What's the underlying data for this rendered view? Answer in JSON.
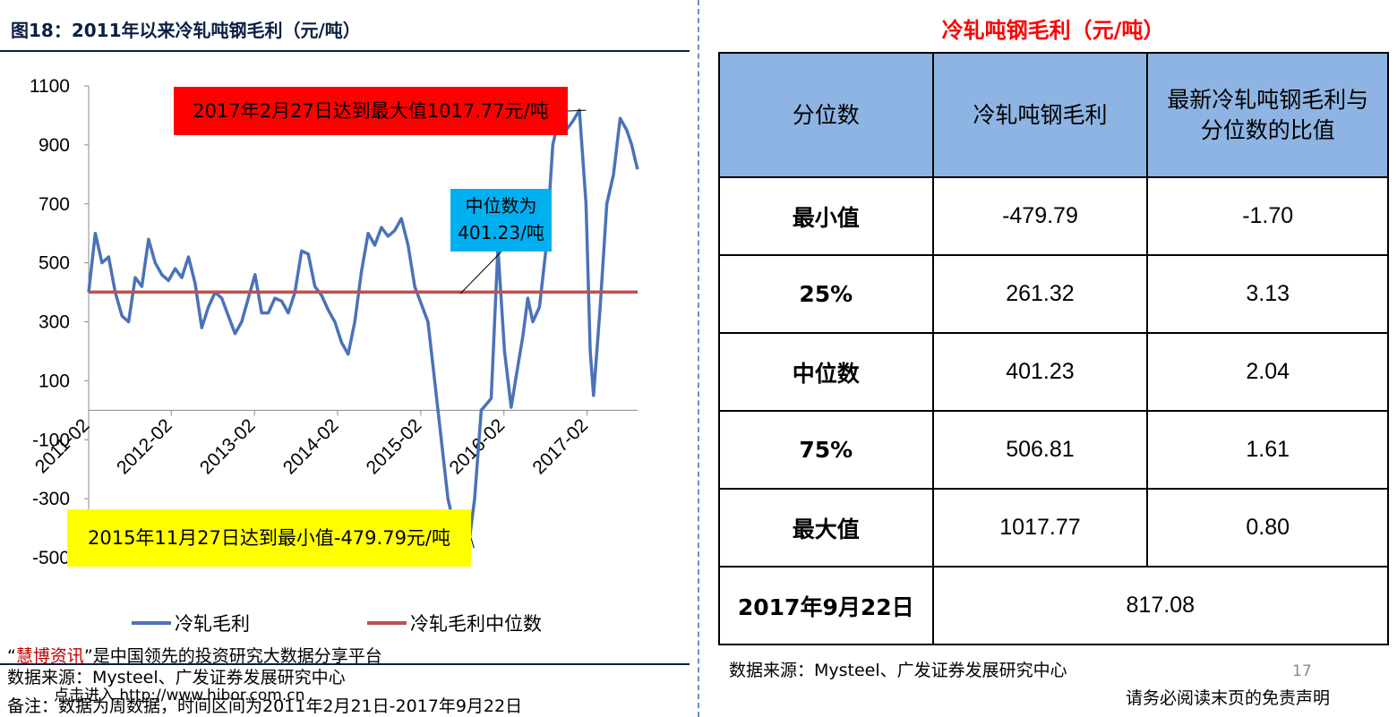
{
  "figure_title": "图18：2011年以来冷轧吨钢毛利（元/吨）",
  "right_title": "冷轧吨钢毛利（元/吨）",
  "callouts": {
    "max": "2017年2月27日达到最大值1017.77元/吨",
    "min": "2015年11月27日达到最小值-479.79元/吨",
    "median": "中位数为401.23/吨"
  },
  "legend": {
    "series1": "冷轧毛利",
    "series2": "冷轧毛利中位数"
  },
  "colors": {
    "series1": "#4a72b8",
    "series2": "#c0504d",
    "header": "#8eb4e3",
    "accent_red": "#ff0000"
  },
  "notes": {
    "promo_prefix": "“",
    "promo_brand": "慧博资讯",
    "promo_rest": "”是中国领先的投资研究大数据分享平台",
    "source": "数据来源：Mysteel、广发证券发展研究中心",
    "watermark": "点击进入 http://www.hibor.com.cn",
    "remark": "备注：数据为周数据，时间区间为2011年2月21日-2017年9月22日"
  },
  "table": {
    "headers": [
      "分位数",
      "冷轧吨钢毛利",
      "最新冷轧吨钢毛利与分位数的比值"
    ],
    "rows": [
      [
        "最小值",
        "-479.79",
        "-1.70"
      ],
      [
        "25%",
        "261.32",
        "3.13"
      ],
      [
        "中位数",
        "401.23",
        "2.04"
      ],
      [
        "75%",
        "506.81",
        "1.61"
      ],
      [
        "最大值",
        "1017.77",
        "0.80"
      ]
    ],
    "last_row": {
      "label": "2017年9月22日",
      "value": "817.08"
    }
  },
  "right_source": "数据来源：Mysteel、广发证券发展研究中心",
  "page_number": "17",
  "disclaimer": "请务必阅读末页的免责声明",
  "chart_data": {
    "type": "line",
    "xlabel": "",
    "ylabel": "",
    "ylim": [
      -500,
      1100
    ],
    "yticks": [
      -500,
      -300,
      -100,
      100,
      300,
      500,
      700,
      900,
      1100
    ],
    "xlim": [
      "2011-02",
      "2017-09"
    ],
    "xtick_labels": [
      "2011-02",
      "2012-02",
      "2013-02",
      "2014-02",
      "2015-02",
      "2016-02",
      "2017-02"
    ],
    "grid": false,
    "legend_position": "bottom",
    "series": [
      {
        "name": "冷轧毛利",
        "x": [
          2011.13,
          2011.21,
          2011.29,
          2011.37,
          2011.45,
          2011.53,
          2011.61,
          2011.69,
          2011.77,
          2011.85,
          2011.93,
          2012.01,
          2012.09,
          2012.17,
          2012.25,
          2012.33,
          2012.41,
          2012.49,
          2012.57,
          2012.65,
          2012.73,
          2012.81,
          2012.89,
          2012.97,
          2013.05,
          2013.13,
          2013.21,
          2013.29,
          2013.37,
          2013.45,
          2013.53,
          2013.61,
          2013.69,
          2013.77,
          2013.85,
          2013.93,
          2014.01,
          2014.09,
          2014.17,
          2014.25,
          2014.33,
          2014.41,
          2014.49,
          2014.57,
          2014.65,
          2014.73,
          2014.81,
          2014.89,
          2014.97,
          2015.05,
          2015.13,
          2015.21,
          2015.29,
          2015.37,
          2015.45,
          2015.53,
          2015.61,
          2015.69,
          2015.77,
          2015.85,
          2015.91,
          2015.97,
          2016.05,
          2016.13,
          2016.21,
          2016.29,
          2016.35,
          2016.41,
          2016.47,
          2016.55,
          2016.63,
          2016.71,
          2016.79,
          2016.87,
          2016.95,
          2017.03,
          2017.11,
          2017.16,
          2017.2,
          2017.28,
          2017.36,
          2017.44,
          2017.52,
          2017.6,
          2017.66,
          2017.7,
          2017.73
        ],
        "values": [
          400,
          600,
          500,
          520,
          400,
          320,
          300,
          450,
          420,
          580,
          500,
          460,
          440,
          480,
          450,
          520,
          430,
          280,
          350,
          400,
          380,
          320,
          260,
          300,
          380,
          460,
          330,
          330,
          380,
          370,
          330,
          400,
          540,
          530,
          420,
          390,
          340,
          300,
          230,
          190,
          300,
          470,
          600,
          560,
          620,
          590,
          610,
          650,
          560,
          420,
          360,
          300,
          100,
          -100,
          -300,
          -400,
          -420,
          -480,
          -300,
          0,
          20,
          40,
          550,
          200,
          10,
          150,
          250,
          380,
          300,
          350,
          550,
          900,
          1000,
          950,
          980,
          1017.77,
          700,
          200,
          50,
          350,
          700,
          800,
          990,
          950,
          900,
          850,
          817.08
        ]
      },
      {
        "name": "冷轧毛利中位数",
        "x": [
          2011.13,
          2017.73
        ],
        "values": [
          401.23,
          401.23
        ]
      }
    ]
  }
}
